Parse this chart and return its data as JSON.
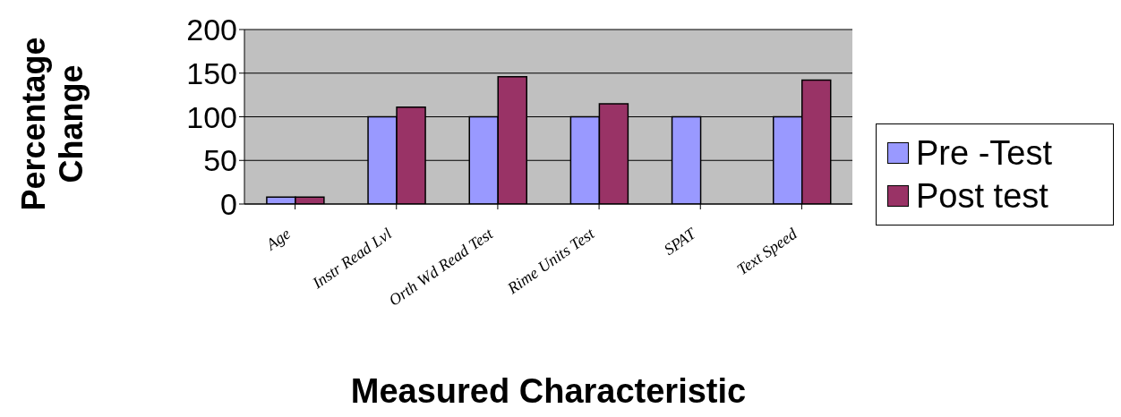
{
  "chart_data": {
    "type": "bar",
    "xlabel": "Measured Characteristic",
    "ylabel": "Percentage Change",
    "categories": [
      "Age",
      "Instr Read Lvl",
      "Orth Wd  Read Test",
      "Rime Units Test",
      "SPAT",
      "Text Speed"
    ],
    "series": [
      {
        "name": "Pre -Test",
        "color": "#9999ff",
        "values": [
          8,
          100,
          100,
          100,
          100,
          100
        ]
      },
      {
        "name": "Post test",
        "color": "#993366",
        "values": [
          8,
          111,
          146,
          115,
          null,
          142
        ]
      }
    ],
    "ylim": [
      0,
      200
    ],
    "yticks": [
      0,
      50,
      100,
      150,
      200
    ],
    "grid": "y",
    "legend": "right"
  }
}
